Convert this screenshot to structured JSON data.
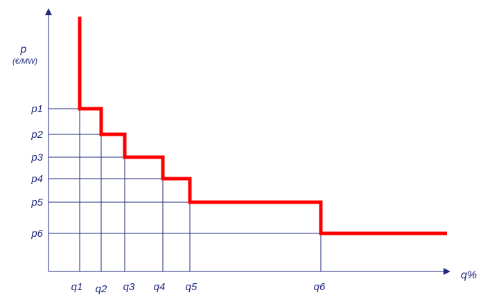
{
  "chart_data": {
    "type": "line",
    "title": "",
    "ylabel": "p",
    "ylabel_unit": "(€/MW)",
    "xlabel": "q%",
    "x_ticks": [
      "q1",
      "q2",
      "q3",
      "q4",
      "q5",
      "q6"
    ],
    "y_ticks": [
      "p1",
      "p2",
      "p3",
      "p4",
      "p5",
      "p6"
    ],
    "series": [
      {
        "color": "#ff0000",
        "style": "step",
        "steps": [
          {
            "from": "q1",
            "to": "q2",
            "level": "p1"
          },
          {
            "from": "q2",
            "to": "q3",
            "level": "p2"
          },
          {
            "from": "q3",
            "to": "q4",
            "level": "p3"
          },
          {
            "from": "q4",
            "to": "q5",
            "level": "p4"
          },
          {
            "from": "q5",
            "to": "q6",
            "level": "p5"
          },
          {
            "from": "q6",
            "to": "end",
            "level": "p6"
          }
        ],
        "vertical_start": "q1"
      }
    ],
    "grid": "reference lines at each p and q tick",
    "colors": {
      "curve": "#ff0000",
      "axes": "#1f2a7a",
      "grid": "#1f2a7a",
      "labels": "#1f2a7a"
    }
  }
}
